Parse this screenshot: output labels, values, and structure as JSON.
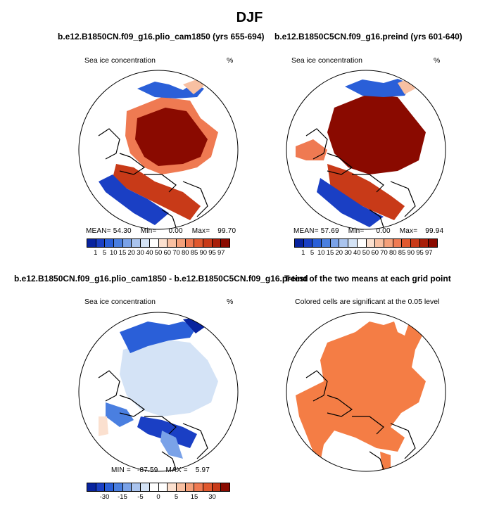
{
  "title": "DJF",
  "panels": [
    {
      "title": "b.e12.B1850CN.f09_g16.plio_cam1850 (yrs 655-694)",
      "variable": "Sea ice concentration",
      "units": "%",
      "stats": {
        "mean_label": "MEAN=",
        "mean": "54.30",
        "min_label": "Min=",
        "min": "0.00",
        "max_label": "Max=",
        "max": "99.70"
      }
    },
    {
      "title": "b.e12.B1850C5CN.f09_g16.preind (yrs 601-640)",
      "variable": "Sea ice concentration",
      "units": "%",
      "stats": {
        "mean_label": "MEAN=",
        "mean": "57.69",
        "min_label": "Min=",
        "min": "0.00",
        "max_label": "Max=",
        "max": "99.94"
      }
    },
    {
      "title": "b.e12.B1850CN.f09_g16.plio_cam1850 - b.e12.B1850C5CN.f09_g16.preind",
      "variable": "Sea ice concentration",
      "units": "%",
      "stats": {
        "min_label": "MIN =",
        "min": "-87.59",
        "max_label": "MAX =",
        "max": "5.97"
      }
    },
    {
      "title": "T-test of the two means at each grid point",
      "note": "Colored cells are significant at the 0.05 level"
    }
  ],
  "colorbar_abs": {
    "colors": [
      "#08239e",
      "#1a3fc4",
      "#2a5fd8",
      "#4a7fe0",
      "#7aa2e8",
      "#aac4ee",
      "#d4e3f6",
      "#ffffff",
      "#fbe0cf",
      "#f8c0a2",
      "#f4a07a",
      "#ef7a52",
      "#e0582e",
      "#c83a18",
      "#a81e08",
      "#8a0a00"
    ],
    "labels": [
      "1",
      "5",
      "10",
      "15",
      "20",
      "30",
      "40",
      "50",
      "60",
      "70",
      "80",
      "85",
      "90",
      "95",
      "97"
    ]
  },
  "colorbar_diff": {
    "colors": [
      "#08239e",
      "#1a3fc4",
      "#2a5fd8",
      "#4a7fe0",
      "#7aa2e8",
      "#aac4ee",
      "#d4e3f6",
      "#ffffff",
      "#ffffff",
      "#fbe0cf",
      "#f8c0a2",
      "#f4a07a",
      "#ef7a52",
      "#e0582e",
      "#c83a18",
      "#8a0a00"
    ],
    "labels": [
      "-30",
      "-15",
      "-5",
      "0",
      "5",
      "15",
      "30"
    ]
  },
  "colors": {
    "significant": "#f47d45",
    "land_outline": "#000000"
  }
}
